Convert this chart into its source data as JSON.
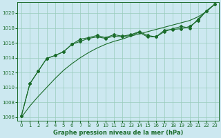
{
  "background_color": "#cce8f0",
  "grid_color": "#99ccbb",
  "line_color": "#1a6b2a",
  "xlim": [
    -0.5,
    23.5
  ],
  "ylim": [
    1005.5,
    1021.5
  ],
  "yticks": [
    1006,
    1008,
    1010,
    1012,
    1014,
    1016,
    1018,
    1020
  ],
  "xticks": [
    0,
    1,
    2,
    3,
    4,
    5,
    6,
    7,
    8,
    9,
    10,
    11,
    12,
    13,
    14,
    15,
    16,
    17,
    18,
    19,
    20,
    21,
    22,
    23
  ],
  "line1_x": [
    0,
    1,
    2,
    3,
    4,
    5,
    6,
    7,
    8,
    9,
    10,
    11,
    12,
    13,
    14,
    15,
    16,
    17,
    18,
    19,
    20,
    21,
    22,
    23
  ],
  "line1_y": [
    1006.0,
    1007.5,
    1008.8,
    1010.0,
    1011.2,
    1012.3,
    1013.2,
    1014.0,
    1014.7,
    1015.3,
    1015.8,
    1016.2,
    1016.5,
    1016.9,
    1017.2,
    1017.5,
    1017.8,
    1018.1,
    1018.4,
    1018.7,
    1019.0,
    1019.5,
    1020.2,
    1021.2
  ],
  "line2_x": [
    0,
    1,
    2,
    3,
    4,
    5,
    6,
    7,
    8,
    9,
    10,
    11,
    12,
    13,
    14,
    15,
    16,
    17,
    18,
    19,
    20,
    21,
    22,
    23
  ],
  "line2_y": [
    1006.2,
    1010.5,
    1012.2,
    1013.9,
    1014.3,
    1014.8,
    1015.8,
    1016.5,
    1016.7,
    1017.0,
    1016.7,
    1017.1,
    1016.9,
    1017.1,
    1017.5,
    1017.0,
    1016.8,
    1017.5,
    1017.9,
    1018.2,
    1018.0,
    1019.2,
    1020.3,
    1021.2
  ],
  "line3_x": [
    0,
    1,
    2,
    3,
    4,
    5,
    6,
    7,
    8,
    9,
    10,
    11,
    12,
    13,
    14,
    15,
    16,
    17,
    18,
    19,
    20,
    21,
    22,
    23
  ],
  "line3_y": [
    1006.2,
    1010.5,
    1012.2,
    1013.9,
    1014.3,
    1014.8,
    1015.8,
    1016.2,
    1016.6,
    1016.8,
    1016.6,
    1016.9,
    1016.8,
    1017.0,
    1017.4,
    1016.8,
    1016.8,
    1017.7,
    1017.8,
    1017.9,
    1018.2,
    1019.0,
    1020.3,
    1021.2
  ],
  "xlabel": "Graphe pression niveau de la mer (hPa)",
  "marker": "D",
  "markersize": 2.0,
  "linewidth": 0.8,
  "tick_fontsize": 5.0,
  "label_fontsize": 6.0
}
